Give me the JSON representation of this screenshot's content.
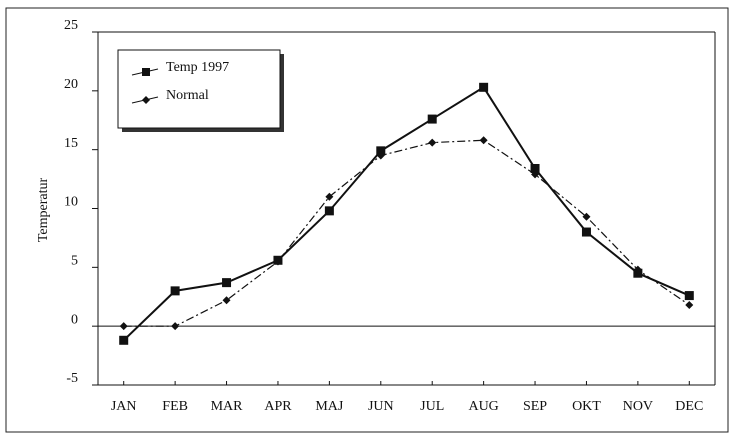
{
  "chart_data": {
    "type": "line",
    "y_label": "Temperatur",
    "categories": [
      "JAN",
      "FEB",
      "MAR",
      "APR",
      "MAJ",
      "JUN",
      "JUL",
      "AUG",
      "SEP",
      "OKT",
      "NOV",
      "DEC"
    ],
    "series": [
      {
        "name": "Temp 1997",
        "color": "#111111",
        "marker": "square",
        "dashed": false,
        "values": [
          -1.2,
          3.0,
          3.7,
          5.6,
          9.8,
          14.9,
          17.6,
          20.3,
          13.4,
          8.0,
          4.5,
          2.6
        ]
      },
      {
        "name": "Normal",
        "color": "#111111",
        "marker": "diamond",
        "dashed": true,
        "values": [
          0,
          0,
          2.2,
          5.5,
          11.0,
          14.5,
          15.6,
          15.8,
          12.9,
          9.3,
          4.8,
          1.8
        ]
      }
    ],
    "ylim": [
      -5,
      25
    ],
    "yticks": [
      -5,
      0,
      5,
      10,
      15,
      20,
      25
    ],
    "legend": "upper left",
    "zero_line": true
  }
}
